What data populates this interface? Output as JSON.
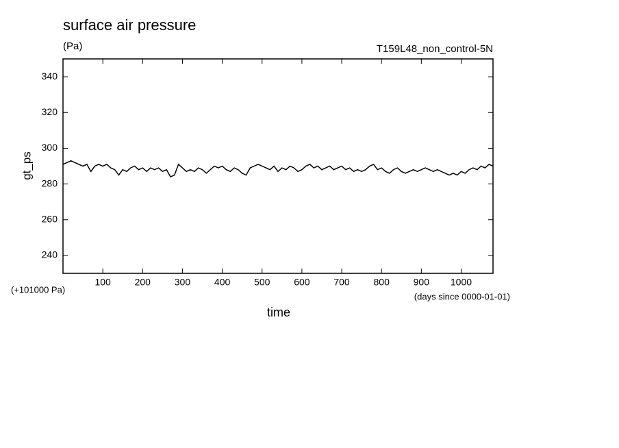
{
  "chart_data": {
    "type": "line",
    "title": "surface air pressure",
    "subtitle": "(Pa)",
    "annotation": "T159L48_non_control-5N",
    "y_label": "gt_ps",
    "y_offset_label": "(+101000 Pa)",
    "x_label": "time",
    "x_units_label": "(days since 0000-01-01)",
    "x": [
      0,
      10,
      20,
      30,
      40,
      50,
      60,
      70,
      80,
      90,
      100,
      110,
      120,
      130,
      140,
      150,
      160,
      170,
      180,
      190,
      200,
      210,
      220,
      230,
      240,
      250,
      260,
      270,
      280,
      290,
      300,
      310,
      320,
      330,
      340,
      350,
      360,
      370,
      380,
      390,
      400,
      410,
      420,
      430,
      440,
      450,
      460,
      470,
      480,
      490,
      500,
      510,
      520,
      530,
      540,
      550,
      560,
      570,
      580,
      590,
      600,
      610,
      620,
      630,
      640,
      650,
      660,
      670,
      680,
      690,
      700,
      710,
      720,
      730,
      740,
      750,
      760,
      770,
      780,
      790,
      800,
      810,
      820,
      830,
      840,
      850,
      860,
      870,
      880,
      890,
      900,
      910,
      920,
      930,
      940,
      950,
      960,
      970,
      980,
      990,
      1000,
      1010,
      1020,
      1030,
      1040,
      1050,
      1060,
      1070,
      1080
    ],
    "series": [
      {
        "name": "gt_ps",
        "color": "#000000",
        "values": [
          291,
          292,
          293,
          292,
          291,
          290,
          291,
          287,
          290,
          291,
          290,
          291,
          289,
          288,
          285,
          288,
          287,
          289,
          290,
          288,
          289,
          287,
          289,
          288,
          289,
          287,
          288,
          284,
          285,
          291,
          289,
          287,
          288,
          287,
          289,
          288,
          286,
          288,
          290,
          289,
          290,
          288,
          287,
          289,
          288,
          286,
          285,
          289,
          290,
          291,
          290,
          289,
          288,
          290,
          287,
          289,
          288,
          290,
          289,
          287,
          288,
          290,
          291,
          289,
          290,
          288,
          289,
          290,
          288,
          289,
          290,
          288,
          289,
          287,
          288,
          287,
          288,
          290,
          291,
          288,
          289,
          287,
          286,
          288,
          289,
          287,
          286,
          287,
          288,
          287,
          288,
          289,
          288,
          287,
          288,
          287,
          286,
          285,
          286,
          285,
          287,
          286,
          288,
          289,
          288,
          290,
          289,
          291,
          290
        ]
      }
    ],
    "xlim": [
      0,
      1080
    ],
    "ylim": [
      230,
      350
    ],
    "xticks": [
      100,
      200,
      300,
      400,
      500,
      600,
      700,
      800,
      900,
      1000
    ],
    "yticks": [
      240,
      260,
      280,
      300,
      320,
      340
    ]
  }
}
